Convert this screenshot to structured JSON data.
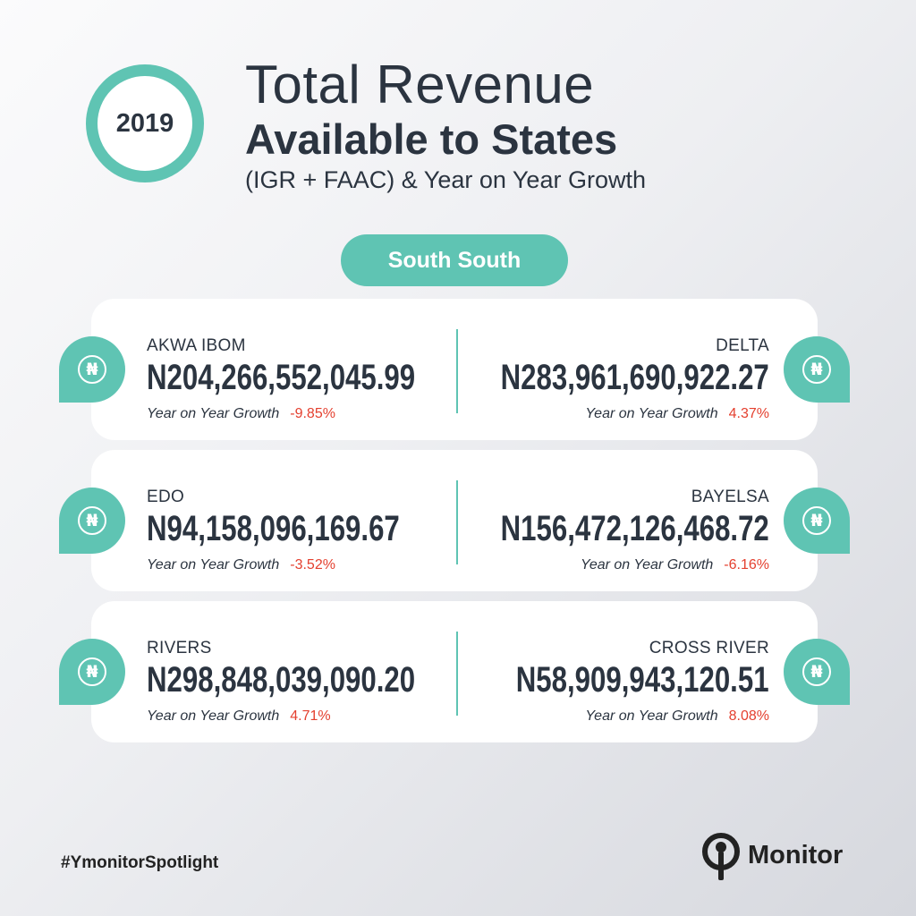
{
  "header": {
    "year": "2019",
    "title_line1": "Total Revenue",
    "title_line2": "Available to States",
    "subtitle": "(IGR + FAAC) & Year on Year Growth"
  },
  "region": "South South",
  "growth_label": "Year on Year Growth",
  "rows": [
    {
      "left": {
        "state": "AKWA IBOM",
        "amount": "N204,266,552,045.99",
        "growth": "-9.85%"
      },
      "right": {
        "state": "DELTA",
        "amount": "N283,961,690,922.27",
        "growth": "4.37%"
      }
    },
    {
      "left": {
        "state": "EDO",
        "amount": "N94,158,096,169.67",
        "growth": "-3.52%"
      },
      "right": {
        "state": "BAYELSA",
        "amount": "N156,472,126,468.72",
        "growth": "-6.16%"
      }
    },
    {
      "left": {
        "state": "RIVERS",
        "amount": "N298,848,039,090.20",
        "growth": "4.71%"
      },
      "right": {
        "state": "CROSS RIVER",
        "amount": "N58,909,943,120.51",
        "growth": "8.08%"
      }
    }
  ],
  "icons": {
    "badge": "naira-coin-icon",
    "logo": "ymonitor-logo-icon",
    "naira_glyph": "₦"
  },
  "footer": {
    "hashtag": "#YmonitorSpotlight",
    "brand": "Monitor"
  },
  "colors": {
    "accent": "#5fc4b3",
    "text": "#2b3440",
    "growth": "#e4402f"
  }
}
